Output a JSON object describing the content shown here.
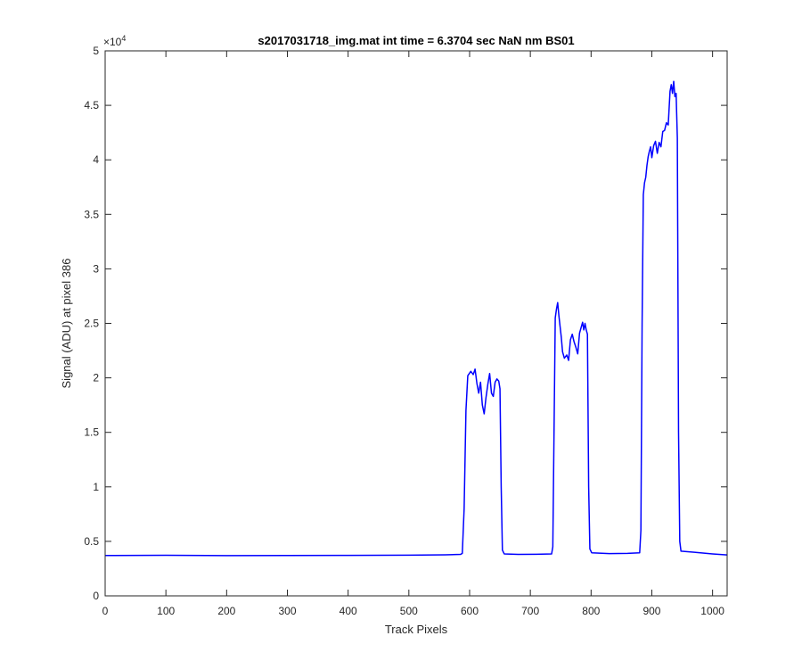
{
  "chart_data": {
    "type": "line",
    "title": "s2017031718_img.mat int time = 6.3704 sec  NaN nm BS01",
    "xlabel": "Track Pixels",
    "ylabel": "Signal (ADU) at pixel 386",
    "xlim": [
      0,
      1024
    ],
    "ylim": [
      0,
      50000
    ],
    "x_ticks": [
      0,
      100,
      200,
      300,
      400,
      500,
      600,
      700,
      800,
      900,
      1000
    ],
    "y_ticks": [
      0,
      0.5,
      1,
      1.5,
      2,
      2.5,
      3,
      3.5,
      4,
      4.5,
      5
    ],
    "y_exponent_label": "×10",
    "y_exponent": "4",
    "grid": false,
    "line_color": "#0000ff",
    "series": [
      {
        "values": [
          [
            0,
            3700
          ],
          [
            100,
            3720
          ],
          [
            200,
            3690
          ],
          [
            300,
            3700
          ],
          [
            400,
            3710
          ],
          [
            500,
            3730
          ],
          [
            560,
            3760
          ],
          [
            585,
            3800
          ],
          [
            588,
            3900
          ],
          [
            591,
            8000
          ],
          [
            594,
            17000
          ],
          [
            597,
            20200
          ],
          [
            602,
            20600
          ],
          [
            606,
            20300
          ],
          [
            609,
            20800
          ],
          [
            612,
            19500
          ],
          [
            615,
            18600
          ],
          [
            618,
            19600
          ],
          [
            621,
            17500
          ],
          [
            624,
            16700
          ],
          [
            627,
            18200
          ],
          [
            630,
            19400
          ],
          [
            633,
            20400
          ],
          [
            636,
            18600
          ],
          [
            639,
            18300
          ],
          [
            642,
            19600
          ],
          [
            645,
            19900
          ],
          [
            648,
            19700
          ],
          [
            650,
            19000
          ],
          [
            652,
            10000
          ],
          [
            654,
            4200
          ],
          [
            657,
            3850
          ],
          [
            680,
            3800
          ],
          [
            710,
            3820
          ],
          [
            735,
            3850
          ],
          [
            737,
            4500
          ],
          [
            739,
            15000
          ],
          [
            741,
            25500
          ],
          [
            743,
            26300
          ],
          [
            745,
            26900
          ],
          [
            747,
            25700
          ],
          [
            749,
            24700
          ],
          [
            751,
            23700
          ],
          [
            753,
            22400
          ],
          [
            756,
            21800
          ],
          [
            760,
            22100
          ],
          [
            763,
            21600
          ],
          [
            766,
            23500
          ],
          [
            769,
            24000
          ],
          [
            772,
            23300
          ],
          [
            775,
            22800
          ],
          [
            778,
            22200
          ],
          [
            781,
            24100
          ],
          [
            784,
            24700
          ],
          [
            786,
            25100
          ],
          [
            788,
            24400
          ],
          [
            790,
            25000
          ],
          [
            792,
            24400
          ],
          [
            794,
            24000
          ],
          [
            796,
            10000
          ],
          [
            798,
            4300
          ],
          [
            801,
            3950
          ],
          [
            830,
            3880
          ],
          [
            860,
            3900
          ],
          [
            880,
            3950
          ],
          [
            882,
            6000
          ],
          [
            884,
            25000
          ],
          [
            886,
            36800
          ],
          [
            888,
            37900
          ],
          [
            890,
            38400
          ],
          [
            892,
            39500
          ],
          [
            894,
            40300
          ],
          [
            896,
            40800
          ],
          [
            898,
            41200
          ],
          [
            900,
            40200
          ],
          [
            903,
            41300
          ],
          [
            906,
            41700
          ],
          [
            909,
            40600
          ],
          [
            912,
            41600
          ],
          [
            915,
            41200
          ],
          [
            918,
            42600
          ],
          [
            921,
            42700
          ],
          [
            924,
            43400
          ],
          [
            927,
            43200
          ],
          [
            930,
            46300
          ],
          [
            932,
            46900
          ],
          [
            934,
            46100
          ],
          [
            936,
            47200
          ],
          [
            938,
            45800
          ],
          [
            940,
            46100
          ],
          [
            942,
            42000
          ],
          [
            944,
            15000
          ],
          [
            946,
            5000
          ],
          [
            948,
            4100
          ],
          [
            970,
            4000
          ],
          [
            1000,
            3850
          ],
          [
            1024,
            3750
          ]
        ]
      }
    ]
  }
}
